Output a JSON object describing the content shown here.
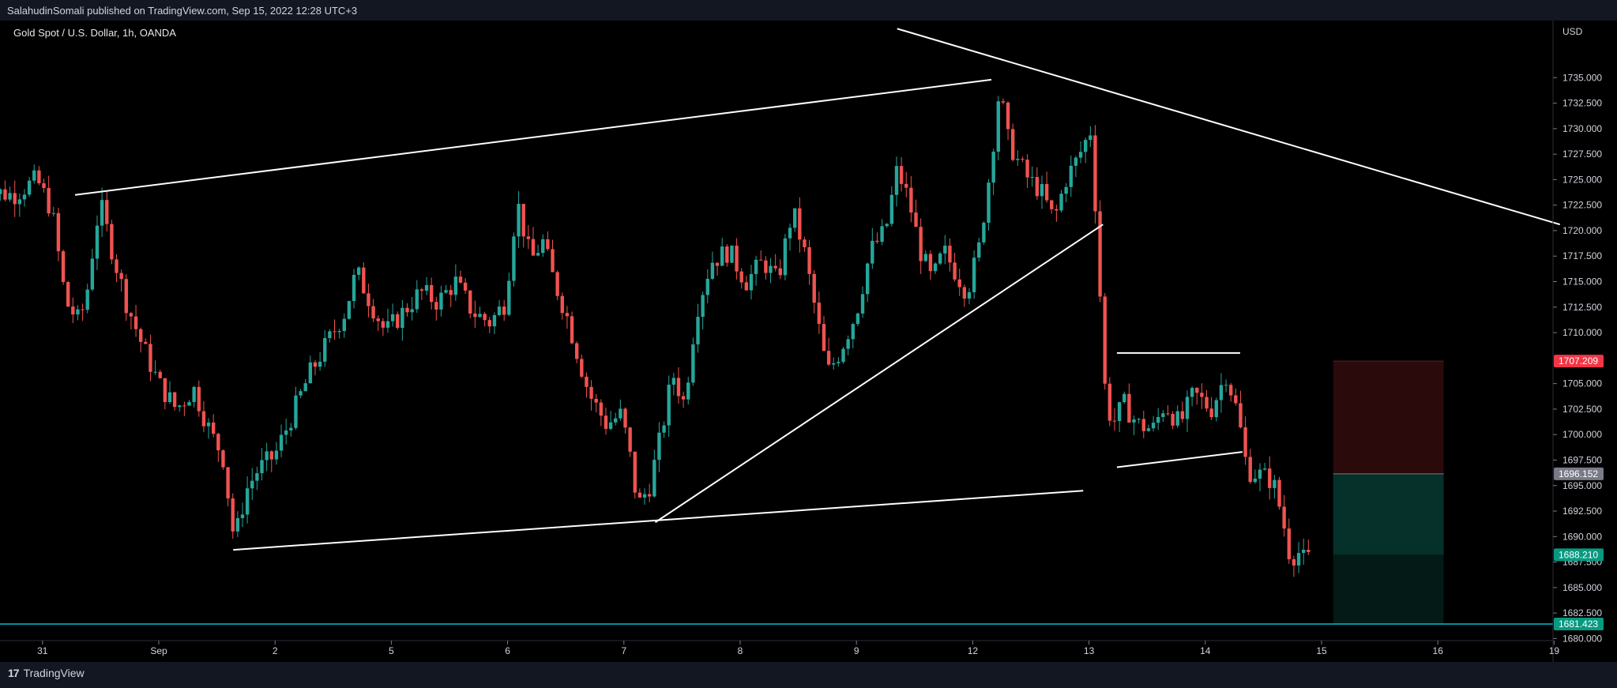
{
  "header": {
    "publish_text": "SalahudinSomali published on TradingView.com, Sep 15, 2022 12:28 UTC+3"
  },
  "footer": {
    "logo_icon": "tradingview-logo-icon",
    "logo_text": "TradingView"
  },
  "chart_data": {
    "type": "candlestick",
    "title": "Gold Spot / U.S. Dollar, 1h, OANDA",
    "currency_label": "USD",
    "ylim": [
      1679.8,
      1740.6
    ],
    "y_ticks": [
      {
        "v": 1735,
        "t": "1735.000"
      },
      {
        "v": 1732.5,
        "t": "1732.500"
      },
      {
        "v": 1730,
        "t": "1730.000"
      },
      {
        "v": 1727.5,
        "t": "1727.500"
      },
      {
        "v": 1725,
        "t": "1725.000"
      },
      {
        "v": 1722.5,
        "t": "1722.500"
      },
      {
        "v": 1720,
        "t": "1720.000"
      },
      {
        "v": 1717.5,
        "t": "1717.500"
      },
      {
        "v": 1715,
        "t": "1715.000"
      },
      {
        "v": 1712.5,
        "t": "1712.500"
      },
      {
        "v": 1710,
        "t": "1710.000"
      },
      {
        "v": 1705,
        "t": "1705.000"
      },
      {
        "v": 1702.5,
        "t": "1702.500"
      },
      {
        "v": 1700,
        "t": "1700.000"
      },
      {
        "v": 1697.5,
        "t": "1697.500"
      },
      {
        "v": 1695,
        "t": "1695.000"
      },
      {
        "v": 1692.5,
        "t": "1692.500"
      },
      {
        "v": 1690,
        "t": "1690.000"
      },
      {
        "v": 1687.5,
        "t": "1687.500"
      },
      {
        "v": 1685,
        "t": "1685.000"
      },
      {
        "v": 1682.5,
        "t": "1682.500"
      },
      {
        "v": 1680,
        "t": "1680.000"
      }
    ],
    "x_ticks": [
      {
        "pos": -0.5,
        "t": "31"
      },
      {
        "pos": 0.5,
        "t": "Sep"
      },
      {
        "pos": 1.5,
        "t": "2"
      },
      {
        "pos": 2.5,
        "t": "5"
      },
      {
        "pos": 3.5,
        "t": "6"
      },
      {
        "pos": 4.5,
        "t": "7"
      },
      {
        "pos": 5.5,
        "t": "8"
      },
      {
        "pos": 6.5,
        "t": "9"
      },
      {
        "pos": 7.5,
        "t": "12"
      },
      {
        "pos": 8.5,
        "t": "13"
      },
      {
        "pos": 9.5,
        "t": "14"
      },
      {
        "pos": 10.5,
        "t": "15"
      },
      {
        "pos": 11.5,
        "t": "16"
      },
      {
        "pos": 12.5,
        "t": "19"
      }
    ],
    "price_labels": [
      {
        "v": 1707.209,
        "t": "1707.209",
        "bg": "#f23645",
        "fg": "#ffffff"
      },
      {
        "v": 1696.152,
        "t": "1696.152",
        "bg": "#787b86",
        "fg": "#ffffff"
      },
      {
        "v": 1688.21,
        "t": "1688.210",
        "bg": "#089981",
        "fg": "#ffffff"
      },
      {
        "v": 1681.423,
        "t": "1681.423",
        "bg": "#089981",
        "fg": "#ffffff"
      }
    ],
    "colors": {
      "up": "#26a69a",
      "down": "#ef5350",
      "line": "#ffffff",
      "support": "#00bcd4",
      "stop_zone": "#2b0a0c",
      "target_zone": "#06302a",
      "target_zone2": "#031a16"
    },
    "support_level": 1681.423,
    "position": {
      "x1": 10.6,
      "x2": 11.55,
      "stop": 1707.209,
      "entry": 1696.152,
      "target": 1681.423,
      "mid": 1688.21
    },
    "trendlines": [
      {
        "name": "upper-channel",
        "x1": -0.22,
        "y1": 1723.5,
        "x2": 7.66,
        "y2": 1734.8
      },
      {
        "name": "lower-channel",
        "x1": 1.14,
        "y1": 1688.7,
        "x2": 8.45,
        "y2": 1694.5
      },
      {
        "name": "rising-wedge",
        "x1": 4.77,
        "y1": 1691.4,
        "x2": 8.62,
        "y2": 1720.6
      },
      {
        "name": "descending-resistance",
        "x1": 6.85,
        "y1": 1739.8,
        "x2": 12.55,
        "y2": 1720.6
      },
      {
        "name": "flag-top",
        "x1": 8.74,
        "y1": 1708.0,
        "x2": 9.8,
        "y2": 1708.0
      },
      {
        "name": "flag-bottom",
        "x1": 8.74,
        "y1": 1696.8,
        "x2": 9.82,
        "y2": 1698.3
      }
    ],
    "waypoints": [
      [
        -1.03,
        1724.0
      ],
      [
        -0.75,
        1723.5
      ],
      [
        -0.55,
        1725.0
      ],
      [
        -0.42,
        1722.0
      ],
      [
        -0.3,
        1713.0
      ],
      [
        -0.18,
        1711.0
      ],
      [
        -0.1,
        1715.0
      ],
      [
        -0.05,
        1720.0
      ],
      [
        0.0,
        1722.5
      ],
      [
        0.1,
        1718.0
      ],
      [
        0.22,
        1713.0
      ],
      [
        0.35,
        1709.0
      ],
      [
        0.5,
        1705.0
      ],
      [
        0.65,
        1702.5
      ],
      [
        0.8,
        1704.5
      ],
      [
        0.95,
        1700.0
      ],
      [
        1.05,
        1698.0
      ],
      [
        1.15,
        1689.5
      ],
      [
        1.25,
        1694.5
      ],
      [
        1.35,
        1696.5
      ],
      [
        1.5,
        1698.0
      ],
      [
        1.65,
        1702.0
      ],
      [
        1.8,
        1706.0
      ],
      [
        1.95,
        1709.0
      ],
      [
        2.1,
        1712.0
      ],
      [
        2.2,
        1716.0
      ],
      [
        2.32,
        1713.0
      ],
      [
        2.45,
        1710.0
      ],
      [
        2.6,
        1712.0
      ],
      [
        2.75,
        1714.0
      ],
      [
        2.9,
        1713.0
      ],
      [
        3.05,
        1715.0
      ],
      [
        3.2,
        1712.0
      ],
      [
        3.35,
        1711.0
      ],
      [
        3.48,
        1713.0
      ],
      [
        3.58,
        1723.0
      ],
      [
        3.7,
        1717.0
      ],
      [
        3.8,
        1719.0
      ],
      [
        3.9,
        1715.0
      ],
      [
        4.0,
        1712.0
      ],
      [
        4.1,
        1708.0
      ],
      [
        4.2,
        1704.0
      ],
      [
        4.35,
        1701.0
      ],
      [
        4.48,
        1702.0
      ],
      [
        4.55,
        1698.0
      ],
      [
        4.62,
        1693.0
      ],
      [
        4.72,
        1695.0
      ],
      [
        4.82,
        1700.0
      ],
      [
        4.92,
        1706.0
      ],
      [
        5.02,
        1703.0
      ],
      [
        5.12,
        1712.0
      ],
      [
        5.25,
        1717.0
      ],
      [
        5.4,
        1718.0
      ],
      [
        5.55,
        1715.0
      ],
      [
        5.7,
        1717.0
      ],
      [
        5.82,
        1715.0
      ],
      [
        5.95,
        1722.0
      ],
      [
        6.05,
        1718.0
      ],
      [
        6.15,
        1712.0
      ],
      [
        6.25,
        1706.0
      ],
      [
        6.35,
        1708.0
      ],
      [
        6.5,
        1712.0
      ],
      [
        6.62,
        1718.0
      ],
      [
        6.75,
        1720.0
      ],
      [
        6.85,
        1726.0
      ],
      [
        6.95,
        1723.0
      ],
      [
        7.05,
        1718.0
      ],
      [
        7.15,
        1715.0
      ],
      [
        7.25,
        1718.0
      ],
      [
        7.35,
        1716.0
      ],
      [
        7.45,
        1714.0
      ],
      [
        7.55,
        1718.0
      ],
      [
        7.65,
        1726.0
      ],
      [
        7.73,
        1734.0
      ],
      [
        7.8,
        1729.0
      ],
      [
        7.88,
        1727.0
      ],
      [
        7.98,
        1725.0
      ],
      [
        8.08,
        1724.0
      ],
      [
        8.2,
        1721.0
      ],
      [
        8.3,
        1725.0
      ],
      [
        8.4,
        1727.0
      ],
      [
        8.52,
        1730.0
      ],
      [
        8.58,
        1717.0
      ],
      [
        8.64,
        1704.0
      ],
      [
        8.7,
        1701.0
      ],
      [
        8.8,
        1703.0
      ],
      [
        8.92,
        1701.0
      ],
      [
        9.05,
        1700.5
      ],
      [
        9.15,
        1703.0
      ],
      [
        9.28,
        1701.0
      ],
      [
        9.4,
        1704.0
      ],
      [
        9.55,
        1702.5
      ],
      [
        9.68,
        1706.0
      ],
      [
        9.78,
        1702.0
      ],
      [
        9.86,
        1696.5
      ],
      [
        9.98,
        1696.0
      ],
      [
        10.08,
        1695.5
      ],
      [
        10.16,
        1692.0
      ],
      [
        10.23,
        1688.0
      ],
      [
        10.3,
        1688.5
      ],
      [
        10.36,
        1687.5
      ],
      [
        10.42,
        1688.2
      ]
    ]
  }
}
